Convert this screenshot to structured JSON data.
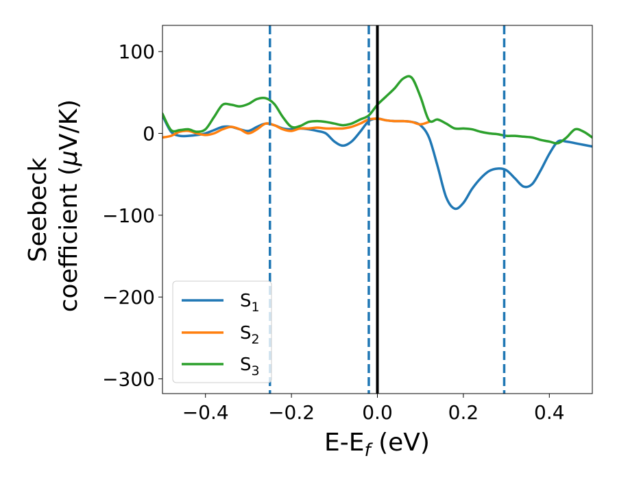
{
  "chart_data": {
    "type": "line",
    "title": "",
    "xlabel": {
      "main": "E-E",
      "sub": "f",
      "unit": " (eV)"
    },
    "ylabel": {
      "line1": "Seebeck",
      "line2_prefix": "coefficient  (",
      "mu": "μ",
      "line2_suffix": "V/K)"
    },
    "xlim": [
      -0.5,
      0.5
    ],
    "ylim": [
      -318,
      132
    ],
    "xticks": [
      -0.4,
      -0.2,
      0.0,
      0.2,
      0.4
    ],
    "xtick_labels": [
      "−0.4",
      "−0.2",
      "0.0",
      "0.2",
      "0.4"
    ],
    "yticks": [
      100,
      0,
      -100,
      -200,
      -300
    ],
    "ytick_labels": [
      "100",
      "0",
      "−100",
      "−200",
      "−300"
    ],
    "grid": false,
    "legend_position": "lower-left",
    "reference_lines": [
      {
        "x": -0.25,
        "style": "dashed",
        "color": "#1f77b4"
      },
      {
        "x": -0.02,
        "style": "dashed",
        "color": "#1f77b4"
      },
      {
        "x": 0.0,
        "style": "solid",
        "color": "#000000"
      },
      {
        "x": 0.295,
        "style": "dashed",
        "color": "#1f77b4"
      }
    ],
    "series": [
      {
        "name": "S",
        "sub": "1",
        "color": "#1f77b4",
        "points": [
          [
            -0.5,
            22
          ],
          [
            -0.48,
            2
          ],
          [
            -0.46,
            -3
          ],
          [
            -0.44,
            -3
          ],
          [
            -0.42,
            -2
          ],
          [
            -0.4,
            0
          ],
          [
            -0.38,
            4
          ],
          [
            -0.36,
            8
          ],
          [
            -0.34,
            8
          ],
          [
            -0.32,
            5
          ],
          [
            -0.3,
            3
          ],
          [
            -0.28,
            8
          ],
          [
            -0.26,
            12
          ],
          [
            -0.24,
            10
          ],
          [
            -0.22,
            6
          ],
          [
            -0.2,
            5
          ],
          [
            -0.18,
            6
          ],
          [
            -0.16,
            5
          ],
          [
            -0.14,
            3
          ],
          [
            -0.12,
            0
          ],
          [
            -0.1,
            -10
          ],
          [
            -0.08,
            -15
          ],
          [
            -0.06,
            -10
          ],
          [
            -0.04,
            2
          ],
          [
            -0.02,
            15
          ],
          [
            0.0,
            18
          ],
          [
            0.02,
            16
          ],
          [
            0.04,
            15
          ],
          [
            0.06,
            15
          ],
          [
            0.08,
            14
          ],
          [
            0.1,
            10
          ],
          [
            0.12,
            -5
          ],
          [
            0.14,
            -40
          ],
          [
            0.16,
            -78
          ],
          [
            0.18,
            -92
          ],
          [
            0.2,
            -85
          ],
          [
            0.22,
            -68
          ],
          [
            0.24,
            -55
          ],
          [
            0.26,
            -46
          ],
          [
            0.28,
            -43
          ],
          [
            0.3,
            -45
          ],
          [
            0.32,
            -55
          ],
          [
            0.34,
            -65
          ],
          [
            0.36,
            -62
          ],
          [
            0.38,
            -45
          ],
          [
            0.4,
            -25
          ],
          [
            0.42,
            -10
          ],
          [
            0.44,
            -10
          ],
          [
            0.46,
            -12
          ],
          [
            0.48,
            -14
          ],
          [
            0.5,
            -16
          ]
        ]
      },
      {
        "name": "S",
        "sub": "2",
        "color": "#ff7f0e",
        "points": [
          [
            -0.5,
            -5
          ],
          [
            -0.48,
            -3
          ],
          [
            -0.46,
            2
          ],
          [
            -0.44,
            3
          ],
          [
            -0.42,
            0
          ],
          [
            -0.4,
            -2
          ],
          [
            -0.38,
            0
          ],
          [
            -0.36,
            5
          ],
          [
            -0.34,
            8
          ],
          [
            -0.32,
            5
          ],
          [
            -0.3,
            0
          ],
          [
            -0.28,
            5
          ],
          [
            -0.26,
            12
          ],
          [
            -0.24,
            10
          ],
          [
            -0.22,
            5
          ],
          [
            -0.2,
            3
          ],
          [
            -0.18,
            6
          ],
          [
            -0.16,
            6
          ],
          [
            -0.14,
            7
          ],
          [
            -0.12,
            6
          ],
          [
            -0.1,
            6
          ],
          [
            -0.08,
            6
          ],
          [
            -0.06,
            8
          ],
          [
            -0.04,
            12
          ],
          [
            -0.02,
            17
          ],
          [
            0.0,
            18
          ],
          [
            0.02,
            16
          ],
          [
            0.04,
            15
          ],
          [
            0.06,
            15
          ],
          [
            0.08,
            14
          ],
          [
            0.1,
            11
          ],
          [
            0.12,
            14
          ]
        ]
      },
      {
        "name": "S",
        "sub": "3",
        "color": "#2ca02c",
        "points": [
          [
            -0.5,
            24
          ],
          [
            -0.48,
            4
          ],
          [
            -0.46,
            4
          ],
          [
            -0.44,
            5
          ],
          [
            -0.42,
            2
          ],
          [
            -0.4,
            5
          ],
          [
            -0.38,
            20
          ],
          [
            -0.36,
            35
          ],
          [
            -0.34,
            35
          ],
          [
            -0.32,
            33
          ],
          [
            -0.3,
            36
          ],
          [
            -0.28,
            42
          ],
          [
            -0.26,
            43
          ],
          [
            -0.24,
            36
          ],
          [
            -0.22,
            20
          ],
          [
            -0.2,
            8
          ],
          [
            -0.18,
            9
          ],
          [
            -0.16,
            14
          ],
          [
            -0.14,
            15
          ],
          [
            -0.12,
            14
          ],
          [
            -0.1,
            12
          ],
          [
            -0.08,
            10
          ],
          [
            -0.06,
            12
          ],
          [
            -0.04,
            17
          ],
          [
            -0.02,
            22
          ],
          [
            0.0,
            35
          ],
          [
            0.02,
            45
          ],
          [
            0.04,
            55
          ],
          [
            0.06,
            67
          ],
          [
            0.08,
            68
          ],
          [
            0.1,
            45
          ],
          [
            0.12,
            16
          ],
          [
            0.14,
            17
          ],
          [
            0.16,
            12
          ],
          [
            0.18,
            6
          ],
          [
            0.2,
            6
          ],
          [
            0.22,
            5
          ],
          [
            0.24,
            2
          ],
          [
            0.26,
            0
          ],
          [
            0.28,
            -1
          ],
          [
            0.3,
            -3
          ],
          [
            0.32,
            -3
          ],
          [
            0.34,
            -4
          ],
          [
            0.36,
            -5
          ],
          [
            0.38,
            -8
          ],
          [
            0.4,
            -10
          ],
          [
            0.42,
            -12
          ],
          [
            0.44,
            -5
          ],
          [
            0.46,
            5
          ],
          [
            0.48,
            2
          ],
          [
            0.5,
            -5
          ]
        ]
      }
    ]
  }
}
